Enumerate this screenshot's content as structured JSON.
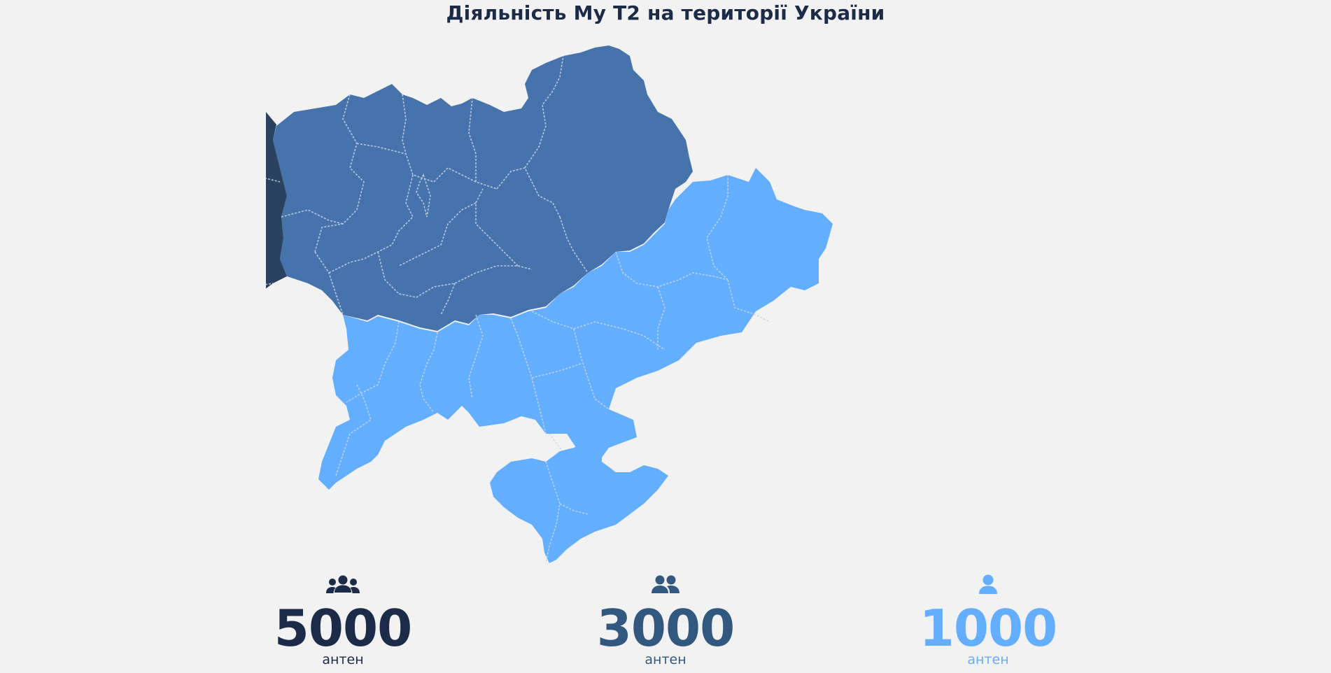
{
  "title": "Діяльність My T2 на території України",
  "colors": {
    "background": "#f2f2f2",
    "tier_high": "#2a4260",
    "tier_mid": "#4673ab",
    "tier_low": "#64aeff",
    "border": "#c9d6e6"
  },
  "map": {
    "country": "Ukraine",
    "zones": [
      {
        "id": "west",
        "tier": "high",
        "color": "#2a4260"
      },
      {
        "id": "center-north",
        "tier": "mid",
        "color": "#4673ab"
      },
      {
        "id": "south-east",
        "tier": "low",
        "color": "#64aeff"
      }
    ]
  },
  "stats": [
    {
      "icon": "group-of-three-icon",
      "value": "5000",
      "unit": "антен",
      "color": "#1c2b47"
    },
    {
      "icon": "group-of-two-icon",
      "value": "3000",
      "unit": "антен",
      "color": "#33587f"
    },
    {
      "icon": "single-user-icon",
      "value": "1000",
      "unit": "антен",
      "color": "#64aeff"
    }
  ]
}
